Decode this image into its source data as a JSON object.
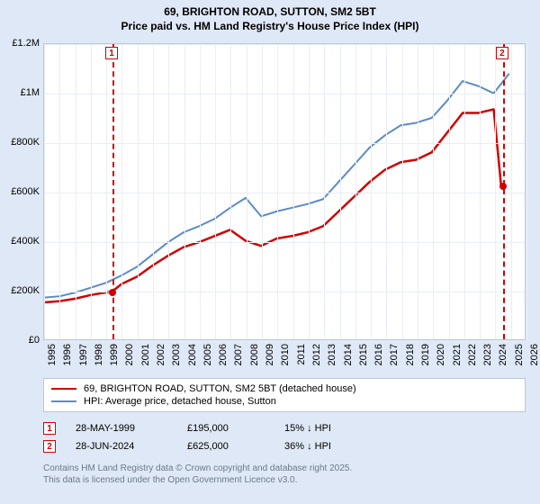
{
  "title": "69, BRIGHTON ROAD, SUTTON, SM2 5BT",
  "subtitle": "Price paid vs. HM Land Registry's House Price Index (HPI)",
  "chart": {
    "type": "line",
    "background_color": "#ffffff",
    "panel_color": "#dfe8f6",
    "grid_color": "#e8eef6",
    "border_color": "#b8c8db",
    "x_range": [
      1995,
      2026
    ],
    "x_ticks": [
      1995,
      1996,
      1997,
      1998,
      1999,
      2000,
      2001,
      2002,
      2003,
      2004,
      2005,
      2006,
      2007,
      2008,
      2009,
      2010,
      2011,
      2012,
      2013,
      2014,
      2015,
      2016,
      2017,
      2018,
      2019,
      2020,
      2021,
      2022,
      2023,
      2024,
      2025,
      2026
    ],
    "y_range": [
      0,
      1200000
    ],
    "y_ticks": [
      0,
      200000,
      400000,
      600000,
      800000,
      1000000,
      1200000
    ],
    "y_tick_labels": [
      "£0",
      "£200K",
      "£400K",
      "£600K",
      "£800K",
      "£1M",
      "£1.2M"
    ],
    "label_fontsize": 11,
    "title_fontsize": 12,
    "series": [
      {
        "name": "69, BRIGHTON ROAD, SUTTON, SM2 5BT (detached house)",
        "color": "#d00000",
        "width": 2.5,
        "data": [
          [
            1995,
            150000
          ],
          [
            1996,
            155000
          ],
          [
            1997,
            165000
          ],
          [
            1998,
            180000
          ],
          [
            1999.4,
            195000
          ],
          [
            2000,
            225000
          ],
          [
            2001,
            255000
          ],
          [
            2002,
            300000
          ],
          [
            2003,
            340000
          ],
          [
            2004,
            375000
          ],
          [
            2005,
            395000
          ],
          [
            2006,
            420000
          ],
          [
            2007,
            445000
          ],
          [
            2008,
            400000
          ],
          [
            2009,
            380000
          ],
          [
            2010,
            410000
          ],
          [
            2011,
            420000
          ],
          [
            2012,
            435000
          ],
          [
            2013,
            460000
          ],
          [
            2014,
            520000
          ],
          [
            2015,
            580000
          ],
          [
            2016,
            640000
          ],
          [
            2017,
            690000
          ],
          [
            2018,
            720000
          ],
          [
            2019,
            730000
          ],
          [
            2020,
            760000
          ],
          [
            2021,
            840000
          ],
          [
            2022,
            920000
          ],
          [
            2023,
            920000
          ],
          [
            2024,
            935000
          ],
          [
            2024.48,
            625000
          ],
          [
            2024.5,
            625000
          ]
        ]
      },
      {
        "name": "HPI: Average price, detached house, Sutton",
        "color": "#5b8bc4",
        "width": 2,
        "data": [
          [
            1995,
            170000
          ],
          [
            1996,
            175000
          ],
          [
            1997,
            190000
          ],
          [
            1998,
            210000
          ],
          [
            1999,
            230000
          ],
          [
            2000,
            260000
          ],
          [
            2001,
            295000
          ],
          [
            2002,
            345000
          ],
          [
            2003,
            395000
          ],
          [
            2004,
            435000
          ],
          [
            2005,
            460000
          ],
          [
            2006,
            490000
          ],
          [
            2007,
            535000
          ],
          [
            2008,
            575000
          ],
          [
            2009,
            500000
          ],
          [
            2010,
            520000
          ],
          [
            2011,
            535000
          ],
          [
            2012,
            550000
          ],
          [
            2013,
            570000
          ],
          [
            2014,
            640000
          ],
          [
            2015,
            710000
          ],
          [
            2016,
            780000
          ],
          [
            2017,
            830000
          ],
          [
            2018,
            870000
          ],
          [
            2019,
            880000
          ],
          [
            2020,
            900000
          ],
          [
            2021,
            970000
          ],
          [
            2022,
            1050000
          ],
          [
            2023,
            1030000
          ],
          [
            2024,
            1000000
          ],
          [
            2025,
            1080000
          ]
        ]
      }
    ],
    "markers": [
      {
        "id": "1",
        "x": 1999.4,
        "y": 195000,
        "color": "#d00000"
      },
      {
        "id": "2",
        "x": 2024.49,
        "y": 625000,
        "color": "#d00000"
      }
    ]
  },
  "legend": [
    {
      "color": "#d00000",
      "label": "69, BRIGHTON ROAD, SUTTON, SM2 5BT (detached house)"
    },
    {
      "color": "#5b8bc4",
      "label": "HPI: Average price, detached house, Sutton"
    }
  ],
  "dataRows": [
    {
      "badge": "1",
      "date": "28-MAY-1999",
      "price": "£195,000",
      "pct": "15%",
      "direction": "↓",
      "vs": "HPI"
    },
    {
      "badge": "2",
      "date": "28-JUN-2024",
      "price": "£625,000",
      "pct": "36%",
      "direction": "↓",
      "vs": "HPI"
    }
  ],
  "footer": {
    "line1": "Contains HM Land Registry data © Crown copyright and database right 2025.",
    "line2": "This data is licensed under the Open Government Licence v3.0."
  }
}
